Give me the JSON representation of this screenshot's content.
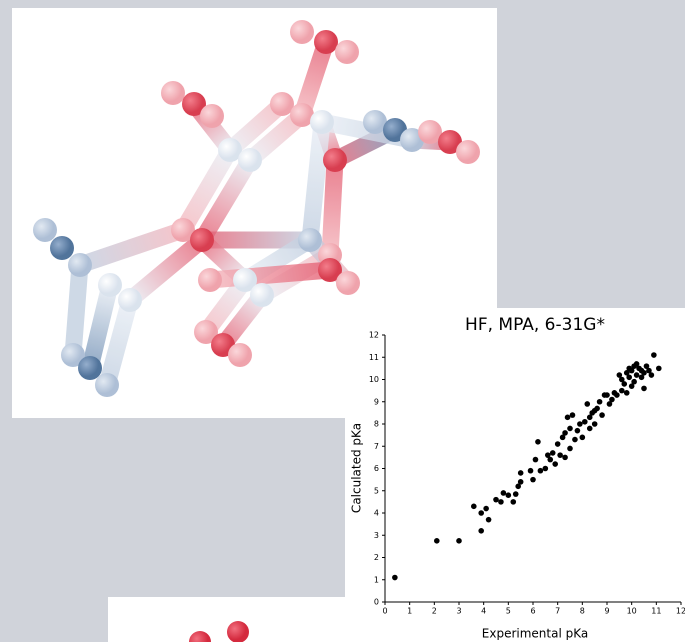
{
  "chart_data": {
    "type": "scatter",
    "title": "HF, MPA, 6-31G*",
    "x_label": "Experimental pKa",
    "y_label": "Calculated pKa",
    "color": "#000000",
    "x": [
      0.4,
      2.1,
      3.0,
      3.6,
      3.9,
      3.9,
      4.1,
      4.2,
      4.5,
      4.7,
      4.8,
      5.0,
      5.2,
      5.3,
      5.4,
      5.5,
      5.5,
      5.9,
      6.0,
      6.1,
      6.2,
      6.3,
      6.5,
      6.6,
      6.7,
      6.8,
      6.9,
      7.0,
      7.1,
      7.2,
      7.3,
      7.3,
      7.4,
      7.5,
      7.5,
      7.6,
      7.7,
      7.8,
      7.9,
      8.0,
      8.1,
      8.2,
      8.3,
      8.3,
      8.4,
      8.5,
      8.5,
      8.6,
      8.7,
      8.8,
      8.9,
      9.0,
      9.1,
      9.2,
      9.3,
      9.4,
      9.5,
      9.6,
      9.6,
      9.7,
      9.8,
      9.8,
      9.9,
      10.0,
      10.0,
      10.1,
      10.1,
      10.2,
      10.3,
      10.4,
      10.5,
      10.5,
      10.6,
      10.7,
      10.8,
      10.9,
      11.1,
      10.2,
      10.4,
      9.9
    ],
    "y": [
      1.1,
      2.75,
      2.75,
      4.3,
      3.2,
      4.0,
      4.2,
      3.7,
      4.6,
      4.5,
      4.9,
      4.8,
      4.5,
      4.85,
      5.2,
      5.8,
      5.4,
      5.9,
      5.5,
      6.4,
      7.2,
      5.9,
      6.0,
      6.6,
      6.4,
      6.7,
      6.2,
      7.1,
      6.6,
      7.4,
      7.6,
      6.5,
      8.3,
      7.8,
      6.9,
      8.4,
      7.3,
      7.7,
      8.0,
      7.4,
      8.1,
      8.9,
      8.3,
      7.8,
      8.5,
      8.6,
      8.0,
      8.7,
      9.0,
      8.4,
      9.3,
      9.3,
      8.9,
      9.1,
      9.4,
      9.3,
      10.2,
      9.5,
      10.0,
      9.8,
      10.3,
      9.4,
      10.1,
      9.7,
      10.4,
      10.6,
      9.9,
      10.2,
      10.5,
      10.1,
      10.3,
      9.6,
      10.6,
      10.4,
      10.2,
      11.1,
      10.5,
      10.7,
      10.4,
      10.5
    ],
    "xlim": [
      0,
      12
    ],
    "ylim": [
      0,
      12
    ],
    "xticks": [
      0,
      1,
      2,
      3,
      4,
      5,
      6,
      7,
      8,
      9,
      10,
      11,
      12
    ],
    "yticks": [
      0,
      1,
      2,
      3,
      4,
      5,
      6,
      7,
      8,
      9,
      10,
      11,
      12
    ]
  }
}
